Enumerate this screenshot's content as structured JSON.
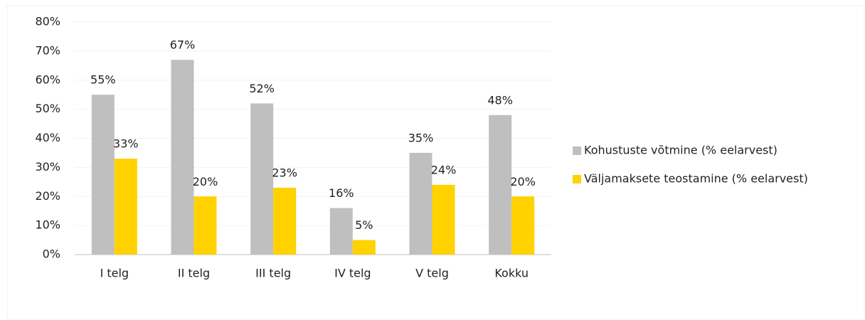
{
  "chart_data": {
    "type": "bar",
    "categories": [
      "I telg",
      "II telg",
      "III telg",
      "IV telg",
      "V telg",
      "Kokku"
    ],
    "series": [
      {
        "name": "Kohustuste võtmine (% eelarvest)",
        "color": "#bfbfbf",
        "values": [
          55,
          67,
          52,
          16,
          35,
          48
        ],
        "value_labels": [
          "55%",
          "67%",
          "52%",
          "16%",
          "35%",
          "48%"
        ]
      },
      {
        "name": "Väljamaksete teostamine (% eelarvest)",
        "color": "#ffd200",
        "values": [
          33,
          20,
          23,
          5,
          24,
          20
        ],
        "value_labels": [
          "33%",
          "20%",
          "23%",
          "5%",
          "24%",
          "20%"
        ]
      }
    ],
    "ylim": [
      0,
      80
    ],
    "yticks": [
      {
        "value": 0,
        "label": "0%"
      },
      {
        "value": 10,
        "label": "10%"
      },
      {
        "value": 20,
        "label": "20%"
      },
      {
        "value": 30,
        "label": "30%"
      },
      {
        "value": 40,
        "label": "40%"
      },
      {
        "value": 50,
        "label": "50%"
      },
      {
        "value": 60,
        "label": "60%"
      },
      {
        "value": 70,
        "label": "70%"
      },
      {
        "value": 80,
        "label": "80%"
      }
    ],
    "grid": true,
    "legend": "right"
  }
}
